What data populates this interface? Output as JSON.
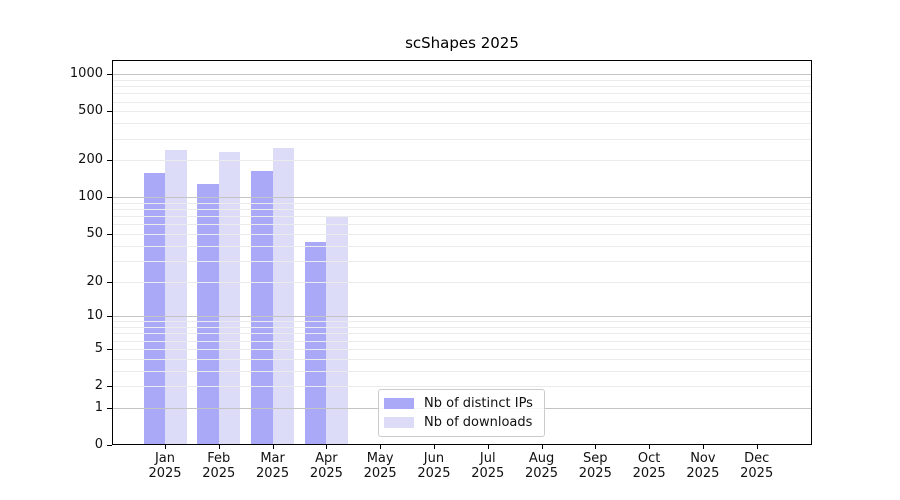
{
  "title": "scShapes 2025",
  "colors": {
    "series_ips": "#a9a9f8",
    "series_downloads": "#dcdcf8",
    "grid_minor": "#ebebeb",
    "grid_major": "#c4c4c4",
    "spine": "#000000",
    "text": "#111111"
  },
  "chart_data": {
    "type": "bar",
    "title": "scShapes 2025",
    "categories": [
      "Jan",
      "Feb",
      "Mar",
      "Apr",
      "May",
      "Jun",
      "Jul",
      "Aug",
      "Sep",
      "Oct",
      "Nov",
      "Dec"
    ],
    "year_label": "2025",
    "series": [
      {
        "name": "Nb of distinct IPs",
        "color": "#a9a9f8",
        "values": [
          157,
          128,
          165,
          43,
          null,
          null,
          null,
          null,
          null,
          null,
          null,
          null
        ]
      },
      {
        "name": "Nb of downloads",
        "color": "#dcdcf8",
        "values": [
          245,
          236,
          254,
          71,
          null,
          null,
          null,
          null,
          null,
          null,
          null,
          null
        ]
      }
    ],
    "yscale": "log1p",
    "y_ticks": [
      0,
      1,
      2,
      5,
      10,
      20,
      50,
      100,
      200,
      500,
      1000
    ],
    "y_major_gridlines": [
      1,
      10,
      100,
      1000
    ],
    "ylim": [
      0,
      1305
    ],
    "xlabel": "",
    "ylabel": "",
    "grid": "horizontal",
    "legend_position": "lower-center-inside"
  }
}
